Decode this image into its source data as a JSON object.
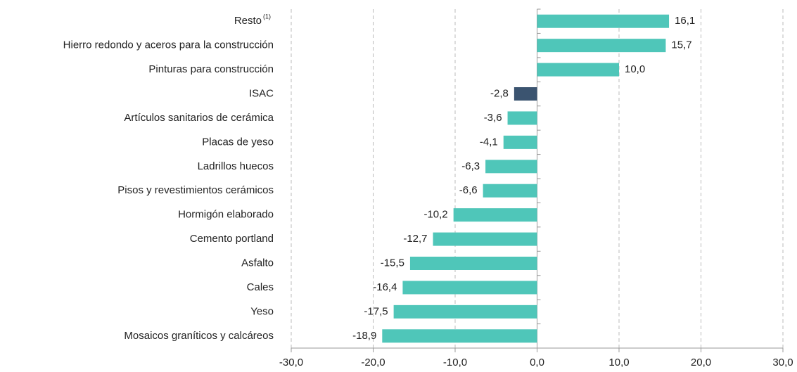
{
  "chart_data": {
    "type": "bar",
    "orientation": "horizontal",
    "categories": [
      "Resto",
      "Hierro redondo y aceros para la construcción",
      "Pinturas para construcción",
      "ISAC",
      "Artículos sanitarios de cerámica",
      "Placas de yeso",
      "Ladrillos huecos",
      "Pisos y revestimientos cerámicos",
      "Hormigón elaborado",
      "Cemento portland",
      "Asfalto",
      "Cales",
      "Yeso",
      "Mosaicos graníticos y calcáreos"
    ],
    "category_superscripts": [
      "(1)",
      null,
      null,
      null,
      null,
      null,
      null,
      null,
      null,
      null,
      null,
      null,
      null,
      null
    ],
    "values": [
      16.1,
      15.7,
      10.0,
      -2.8,
      -3.6,
      -4.1,
      -6.3,
      -6.6,
      -10.2,
      -12.7,
      -15.5,
      -16.4,
      -17.5,
      -18.9
    ],
    "value_labels": [
      "16,1",
      "15,7",
      "10,0",
      "-2,8",
      "-3,6",
      "-4,1",
      "-6,3",
      "-6,6",
      "-10,2",
      "-12,7",
      "-15,5",
      "-16,4",
      "-17,5",
      "-18,9"
    ],
    "colors": [
      "#4fc6b9",
      "#4fc6b9",
      "#4fc6b9",
      "#3b5470",
      "#4fc6b9",
      "#4fc6b9",
      "#4fc6b9",
      "#4fc6b9",
      "#4fc6b9",
      "#4fc6b9",
      "#4fc6b9",
      "#4fc6b9",
      "#4fc6b9",
      "#4fc6b9"
    ],
    "xlim": [
      -30,
      30
    ],
    "xticks": [
      {
        "value": -30,
        "label": "-30,0"
      },
      {
        "value": -20,
        "label": "-20,0"
      },
      {
        "value": -10,
        "label": "-10,0"
      },
      {
        "value": 0,
        "label": "0,0"
      },
      {
        "value": 10,
        "label": "10,0"
      },
      {
        "value": 20,
        "label": "20,0"
      },
      {
        "value": 30,
        "label": "30,0"
      }
    ],
    "grid": true
  }
}
